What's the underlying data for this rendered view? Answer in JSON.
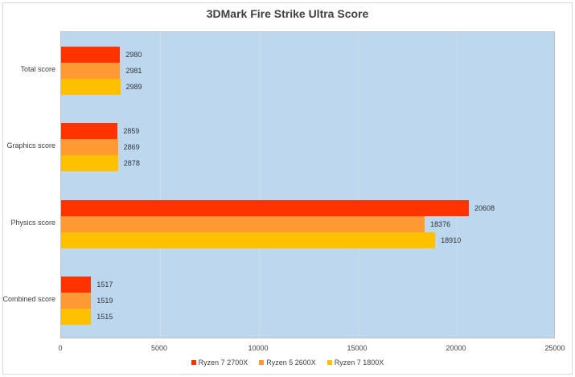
{
  "chart_data": {
    "type": "bar",
    "orientation": "horizontal",
    "title": "3DMark Fire Strike Ultra Score",
    "xlabel": "",
    "ylabel": "",
    "categories": [
      "Total score",
      "Graphics score",
      "Physics score",
      "Combined score"
    ],
    "series": [
      {
        "name": "Ryzen 7 2700X",
        "color": "#ff3300",
        "values": [
          2980,
          2859,
          20608,
          1517
        ]
      },
      {
        "name": "Ryzen 5 2600X",
        "color": "#ff9933",
        "values": [
          2981,
          2869,
          18376,
          1519
        ]
      },
      {
        "name": "Ryzen 7 1800X",
        "color": "#ffc000",
        "values": [
          2989,
          2878,
          18910,
          1515
        ]
      }
    ],
    "xlim": [
      0,
      25000
    ],
    "xticks": [
      "0",
      "5000",
      "10000",
      "15000",
      "20000",
      "25000"
    ],
    "grid": true,
    "legend_position": "bottom",
    "data_labels": true
  },
  "plot_background": "#bdd7ee"
}
